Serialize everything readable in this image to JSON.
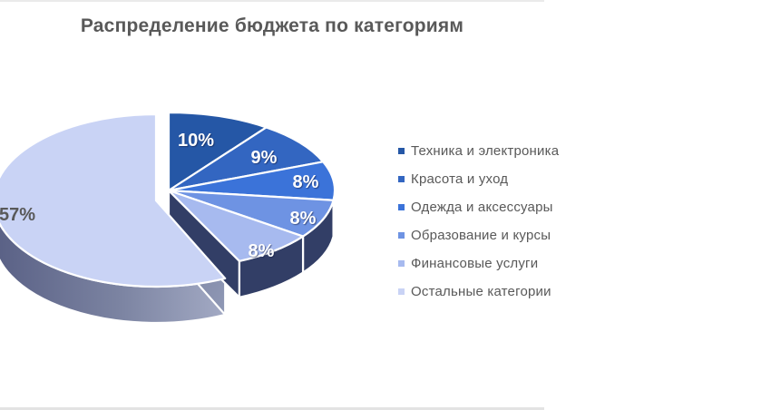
{
  "page": {
    "background": "#FFFFFF",
    "top_edge_color": "#EAEAEA",
    "bottom_edge_color": "#E3E3E3"
  },
  "chart_data": {
    "type": "pie",
    "style": "3d-exploded",
    "title": "Распределение бюджета по категориям",
    "title_color": "#595959",
    "legend_position": "right",
    "rotation_start_deg": 0,
    "direction": "clockwise",
    "categories": [
      "Техника и электроника",
      "Красота и уход",
      "Одежда и аксессуары",
      "Образование и курсы",
      "Финансовые услуги",
      "Остальные категории"
    ],
    "values": [
      10,
      9,
      8,
      8,
      8,
      57
    ],
    "slices": [
      {
        "label": "Техника и электроника",
        "value": 10,
        "pct_label": "10%",
        "color": "#2557A6"
      },
      {
        "label": "Красота и уход",
        "value": 9,
        "pct_label": "9%",
        "color": "#3366C1"
      },
      {
        "label": "Одежда и аксессуары",
        "value": 8,
        "pct_label": "8%",
        "color": "#3B73D9"
      },
      {
        "label": "Образование и курсы",
        "value": 8,
        "pct_label": "8%",
        "color": "#6E93E3"
      },
      {
        "label": "Финансовые услуги",
        "value": 8,
        "pct_label": "8%",
        "color": "#A7BAEF"
      },
      {
        "label": "Остальные категории",
        "value": 57,
        "pct_label": "57%",
        "color": "#C9D3F5"
      }
    ],
    "on_slice_label_color": "#FFFFFF",
    "big_slice_label_color": "#595959",
    "side_wall_color": "#323E66",
    "legend_text_color": "#595959"
  }
}
